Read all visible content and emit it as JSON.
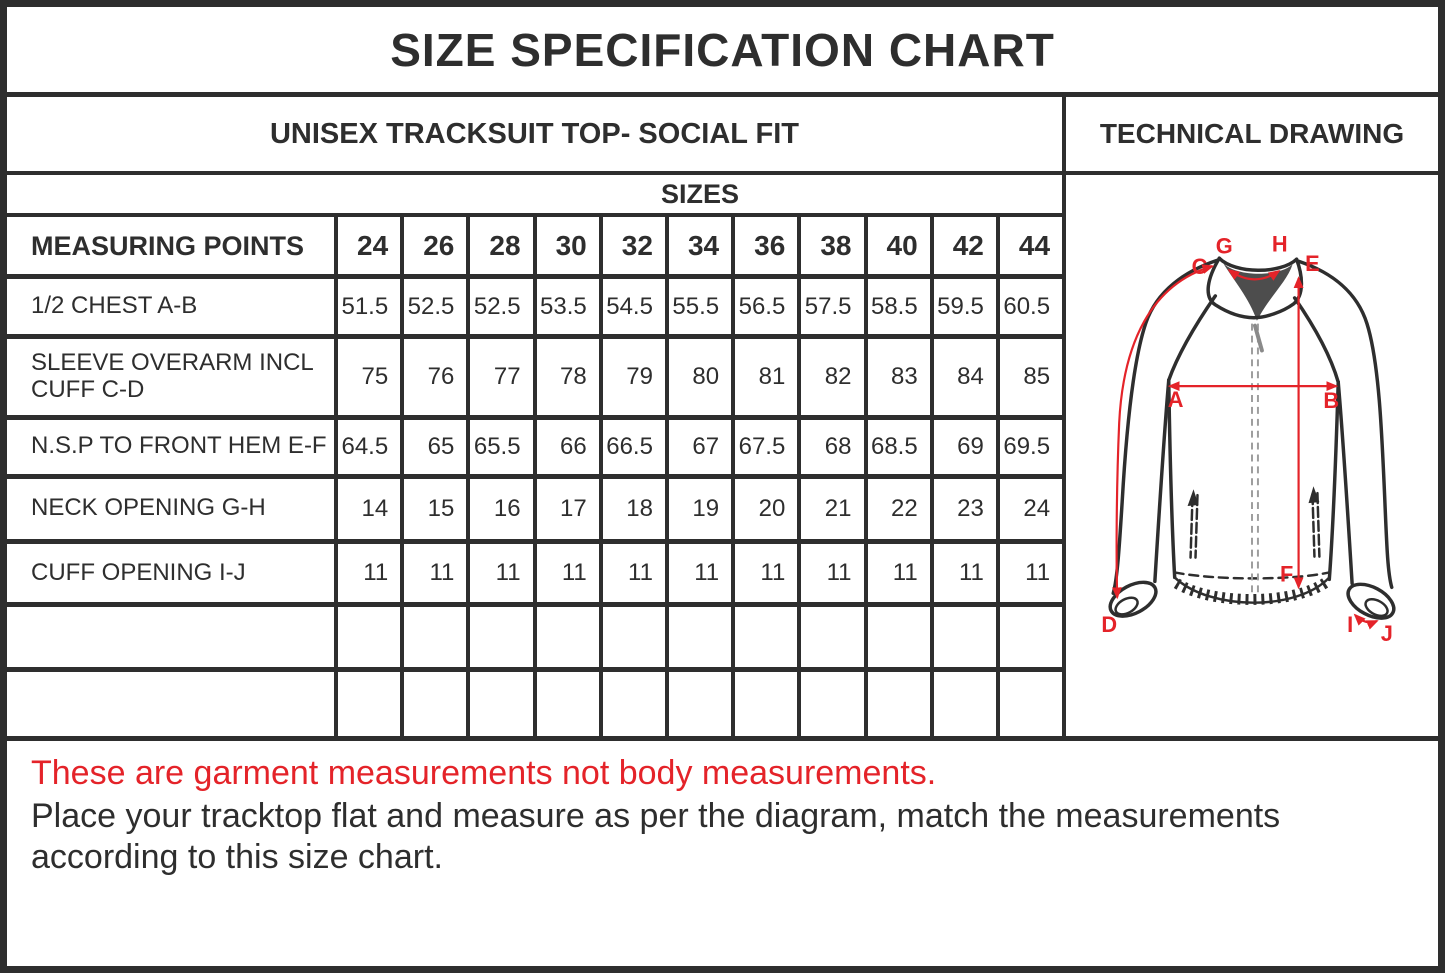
{
  "title": "SIZE SPECIFICATION CHART",
  "product": "UNISEX TRACKSUIT TOP- SOCIAL FIT",
  "drawing_header": "TECHNICAL DRAWING",
  "table": {
    "sizes_header": "SIZES",
    "measuring_points_header": "MEASURING POINTS",
    "size_columns": [
      "24",
      "26",
      "28",
      "30",
      "32",
      "34",
      "36",
      "38",
      "40",
      "42",
      "44"
    ],
    "rows": [
      {
        "label": "1/2 CHEST A-B",
        "values": [
          "51.5",
          "52.5",
          "52.5",
          "53.5",
          "54.5",
          "55.5",
          "56.5",
          "57.5",
          "58.5",
          "59.5",
          "60.5"
        ]
      },
      {
        "label": "SLEEVE OVERARM INCL CUFF C-D",
        "values": [
          "75",
          "76",
          "77",
          "78",
          "79",
          "80",
          "81",
          "82",
          "83",
          "84",
          "85"
        ]
      },
      {
        "label": "N.S.P TO FRONT HEM E-F",
        "values": [
          "64.5",
          "65",
          "65.5",
          "66",
          "66.5",
          "67",
          "67.5",
          "68",
          "68.5",
          "69",
          "69.5"
        ]
      },
      {
        "label": "NECK OPENING G-H",
        "values": [
          "14",
          "15",
          "16",
          "17",
          "18",
          "19",
          "20",
          "21",
          "22",
          "23",
          "24"
        ]
      },
      {
        "label": "CUFF OPENING I-J",
        "values": [
          "11",
          "11",
          "11",
          "11",
          "11",
          "11",
          "11",
          "11",
          "11",
          "11",
          "11"
        ]
      },
      {
        "label": "",
        "values": [
          "",
          "",
          "",
          "",
          "",
          "",
          "",
          "",
          "",
          "",
          ""
        ]
      },
      {
        "label": "",
        "values": [
          "",
          "",
          "",
          "",
          "",
          "",
          "",
          "",
          "",
          "",
          ""
        ]
      }
    ]
  },
  "drawing": {
    "accent_color": "#e42329",
    "point_labels": {
      "a": "A",
      "b": "B",
      "c": "C",
      "d": "D",
      "e": "E",
      "f": "F",
      "g": "G",
      "h": "H",
      "i": "I",
      "j": "J"
    }
  },
  "footer": {
    "warning": "These are garment measurements not body measurements.",
    "instruction": "Place your tracktop flat and measure as per the diagram, match the measurements according to this size chart."
  }
}
